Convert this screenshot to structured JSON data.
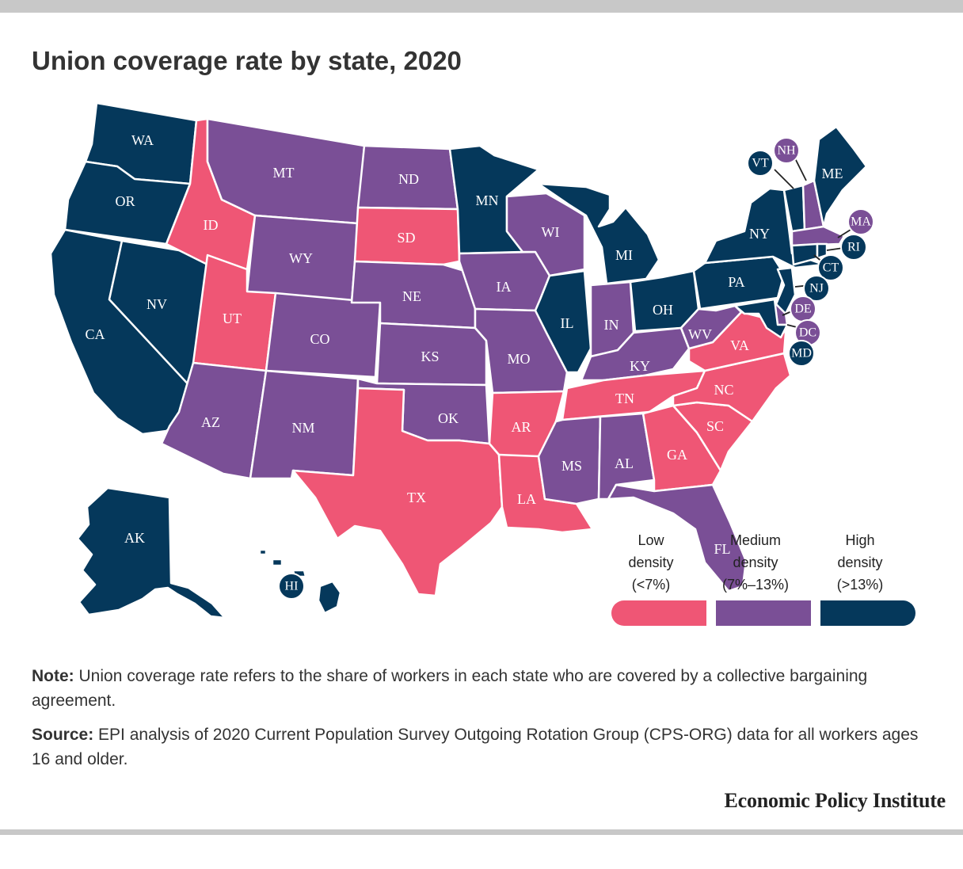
{
  "title": "Union coverage rate by state, 2020",
  "colors": {
    "low": "#ef5675",
    "medium": "#7a4f96",
    "high": "#05385b",
    "border": "#ffffff"
  },
  "legend": [
    {
      "key": "low",
      "line1": "Low",
      "line2": "density",
      "line3": "(<7%)"
    },
    {
      "key": "medium",
      "line1": "Medium",
      "line2": "density",
      "line3": "(7%–13%)"
    },
    {
      "key": "high",
      "line1": "High",
      "line2": "density",
      "line3": "(>13%)"
    }
  ],
  "states": {
    "WA": "high",
    "OR": "high",
    "CA": "high",
    "NV": "high",
    "ID": "low",
    "MT": "medium",
    "WY": "medium",
    "UT": "low",
    "CO": "medium",
    "AZ": "medium",
    "NM": "medium",
    "ND": "medium",
    "SD": "low",
    "NE": "medium",
    "KS": "medium",
    "OK": "medium",
    "TX": "low",
    "MN": "high",
    "IA": "medium",
    "MO": "medium",
    "AR": "low",
    "LA": "low",
    "WI": "medium",
    "IL": "high",
    "MI": "high",
    "IN": "medium",
    "OH": "high",
    "KY": "medium",
    "TN": "low",
    "MS": "medium",
    "AL": "medium",
    "GA": "low",
    "FL": "medium",
    "SC": "low",
    "NC": "low",
    "VA": "low",
    "WV": "medium",
    "PA": "high",
    "NY": "high",
    "VT": "high",
    "NH": "medium",
    "ME": "high",
    "MA": "medium",
    "RI": "high",
    "CT": "high",
    "NJ": "high",
    "DE": "medium",
    "MD": "high",
    "DC": "medium",
    "AK": "high",
    "HI": "high"
  },
  "note_label": "Note:",
  "note_text": "Union coverage rate refers to the share of workers in each state who are covered by a collective bargaining agreement.",
  "source_label": "Source:",
  "source_text": "EPI analysis of 2020 Current Population Survey Outgoing Rotation Group (CPS-ORG) data for all workers ages 16 and older.",
  "brand": "Economic Policy Institute"
}
